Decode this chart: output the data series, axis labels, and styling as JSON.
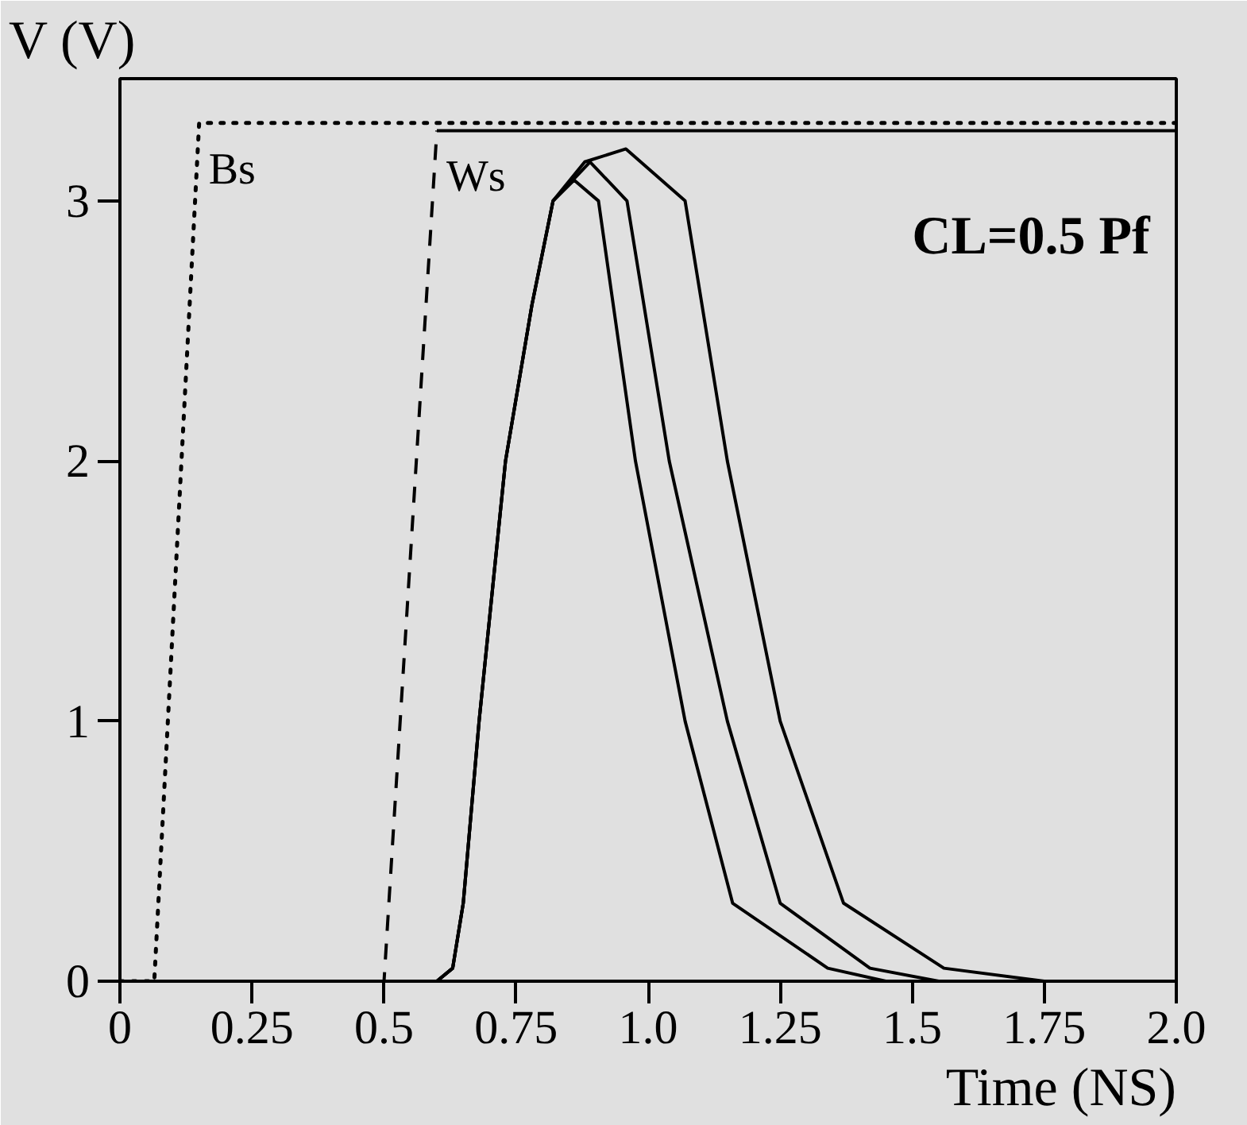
{
  "chart_data": {
    "type": "line",
    "xlabel": "Time (NS)",
    "ylabel": "V (V)",
    "xlim": [
      0,
      2.0
    ],
    "ylim": [
      0,
      3.47
    ],
    "xticks": [
      0,
      0.25,
      0.5,
      0.75,
      {
        "value": 1,
        "label": "1.0"
      },
      1.25,
      1.5,
      1.75,
      {
        "value": 2,
        "label": "2.0"
      }
    ],
    "yticks": [
      0,
      1,
      2,
      3
    ],
    "grid": false,
    "marker": "none",
    "annotations": [
      "CL=0.5 Pf"
    ],
    "series": [
      {
        "name": "Bs",
        "color": "#000000",
        "line_style": "dotted",
        "x": [
          0,
          0.065,
          0.15,
          2.0
        ],
        "values": [
          0,
          0,
          3.3,
          3.3
        ]
      },
      {
        "name": "Ws",
        "color": "#000000",
        "line_style": "dashed",
        "x": [
          0,
          0.5,
          0.6
        ],
        "values": [
          0,
          0,
          3.27
        ]
      },
      {
        "color": "#000000",
        "line_style": "solid",
        "x": [
          0.6,
          2.0
        ],
        "values": [
          3.27,
          3.27
        ]
      },
      {
        "color": "#000000",
        "line_style": "solid",
        "x": [
          0,
          0.6,
          0.63,
          0.65,
          0.68,
          0.73,
          0.78,
          0.82,
          0.86,
          0.906,
          0.976,
          1.07,
          1.16,
          1.34,
          1.45,
          2.0
        ],
        "values": [
          0,
          0,
          0.05,
          0.3,
          1,
          2,
          2.6,
          3.0,
          3.08,
          3.0,
          2,
          1,
          0.3,
          0.05,
          0,
          0
        ]
      },
      {
        "color": "#000000",
        "line_style": "solid",
        "x": [
          0,
          0.6,
          0.63,
          0.65,
          0.68,
          0.73,
          0.78,
          0.82,
          0.89,
          0.96,
          1.04,
          1.15,
          1.25,
          1.42,
          1.55,
          2.0
        ],
        "values": [
          0,
          0,
          0.05,
          0.3,
          1,
          2,
          2.6,
          3.0,
          3.15,
          3.0,
          2,
          1,
          0.3,
          0.05,
          0,
          0
        ]
      },
      {
        "color": "#000000",
        "line_style": "solid",
        "x": [
          0,
          0.6,
          0.63,
          0.65,
          0.68,
          0.73,
          0.78,
          0.82,
          0.88,
          0.958,
          1.07,
          1.15,
          1.25,
          1.37,
          1.56,
          1.75,
          2.0
        ],
        "values": [
          0,
          0,
          0.05,
          0.3,
          1,
          2,
          2.6,
          3.0,
          3.15,
          3.2,
          3.0,
          2,
          1,
          0.3,
          0.05,
          0,
          0
        ]
      }
    ]
  }
}
